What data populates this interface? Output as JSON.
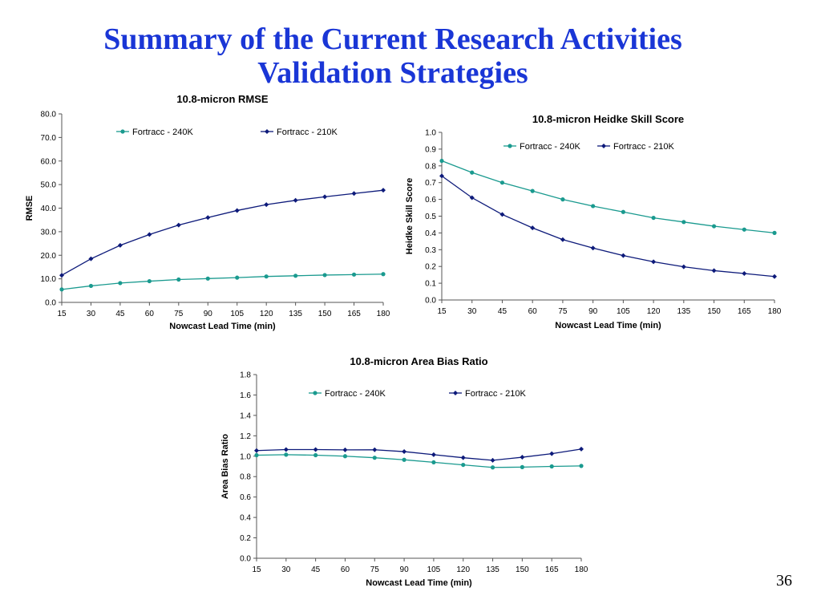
{
  "slide": {
    "title_line1": "Summary of the Current Research Activities",
    "title_line2": "Validation Strategies",
    "page_number": "36"
  },
  "colors": {
    "series_240k": "#1a9a8f",
    "series_210k": "#0d1a7a",
    "axis": "#555555",
    "title": "#1a36d6"
  },
  "chart_data": [
    {
      "type": "line",
      "title": "10.8-micron RMSE",
      "xlabel": "Nowcast Lead Time (min)",
      "ylabel": "RMSE",
      "x": [
        15,
        30,
        45,
        60,
        75,
        90,
        105,
        120,
        135,
        150,
        165,
        180
      ],
      "ylim": [
        0,
        80
      ],
      "yticks": [
        "0.0",
        "10.0",
        "20.0",
        "30.0",
        "40.0",
        "50.0",
        "60.0",
        "70.0",
        "80.0"
      ],
      "grid": false,
      "legend": "top",
      "series": [
        {
          "name": "Fortracc - 240K",
          "values": [
            5.5,
            7.0,
            8.2,
            9.0,
            9.7,
            10.1,
            10.5,
            11.0,
            11.3,
            11.6,
            11.8,
            12.0
          ]
        },
        {
          "name": "Fortracc - 210K",
          "values": [
            11.5,
            18.5,
            24.2,
            28.8,
            32.8,
            36.0,
            39.0,
            41.5,
            43.3,
            44.8,
            46.2,
            47.6
          ]
        }
      ]
    },
    {
      "type": "line",
      "title": "10.8-micron Heidke Skill Score",
      "xlabel": "Nowcast Lead Time (min)",
      "ylabel": "Heidke Skill Score",
      "x": [
        15,
        30,
        45,
        60,
        75,
        90,
        105,
        120,
        135,
        150,
        165,
        180
      ],
      "ylim": [
        0,
        1
      ],
      "yticks": [
        "0.0",
        "0.1",
        "0.2",
        "0.3",
        "0.4",
        "0.5",
        "0.6",
        "0.7",
        "0.8",
        "0.9",
        "1.0"
      ],
      "grid": false,
      "legend": "top",
      "series": [
        {
          "name": "Fortracc - 240K",
          "values": [
            0.83,
            0.76,
            0.7,
            0.65,
            0.6,
            0.56,
            0.525,
            0.49,
            0.465,
            0.44,
            0.42,
            0.4
          ]
        },
        {
          "name": "Fortracc - 210K",
          "values": [
            0.74,
            0.61,
            0.51,
            0.43,
            0.36,
            0.31,
            0.265,
            0.228,
            0.198,
            0.175,
            0.158,
            0.14
          ]
        }
      ]
    },
    {
      "type": "line",
      "title": "10.8-micron Area Bias Ratio",
      "xlabel": "Nowcast Lead Time (min)",
      "ylabel": "Area Bias Ratio",
      "x": [
        15,
        30,
        45,
        60,
        75,
        90,
        105,
        120,
        135,
        150,
        165,
        180
      ],
      "ylim": [
        0,
        1.8
      ],
      "yticks": [
        "0.0",
        "0.2",
        "0.4",
        "0.6",
        "0.8",
        "1.0",
        "1.2",
        "1.4",
        "1.6",
        "1.8"
      ],
      "grid": false,
      "legend": "top",
      "series": [
        {
          "name": "Fortracc - 240K",
          "values": [
            1.01,
            1.015,
            1.01,
            1.0,
            0.985,
            0.965,
            0.94,
            0.915,
            0.89,
            0.893,
            0.9,
            0.905
          ]
        },
        {
          "name": "Fortracc - 210K",
          "values": [
            1.055,
            1.065,
            1.065,
            1.062,
            1.063,
            1.045,
            1.015,
            0.985,
            0.96,
            0.99,
            1.025,
            1.07
          ]
        }
      ]
    }
  ]
}
